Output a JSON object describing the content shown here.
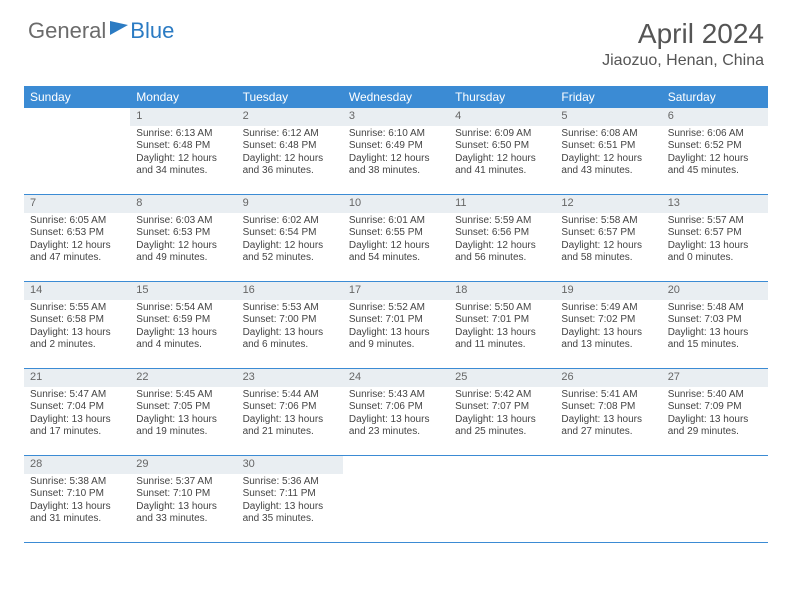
{
  "logo": {
    "part1": "General",
    "part2": "Blue"
  },
  "title": "April 2024",
  "location": "Jiaozuo, Henan, China",
  "headers": [
    "Sunday",
    "Monday",
    "Tuesday",
    "Wednesday",
    "Thursday",
    "Friday",
    "Saturday"
  ],
  "header_bg": "#3b8bd4",
  "header_fg": "#ffffff",
  "daynum_bg": "#e9eef2",
  "border_color": "#3b8bd4",
  "weeks": [
    [
      {
        "n": "",
        "sr": "",
        "ss": "",
        "dl1": "",
        "dl2": ""
      },
      {
        "n": "1",
        "sr": "Sunrise: 6:13 AM",
        "ss": "Sunset: 6:48 PM",
        "dl1": "Daylight: 12 hours",
        "dl2": "and 34 minutes."
      },
      {
        "n": "2",
        "sr": "Sunrise: 6:12 AM",
        "ss": "Sunset: 6:48 PM",
        "dl1": "Daylight: 12 hours",
        "dl2": "and 36 minutes."
      },
      {
        "n": "3",
        "sr": "Sunrise: 6:10 AM",
        "ss": "Sunset: 6:49 PM",
        "dl1": "Daylight: 12 hours",
        "dl2": "and 38 minutes."
      },
      {
        "n": "4",
        "sr": "Sunrise: 6:09 AM",
        "ss": "Sunset: 6:50 PM",
        "dl1": "Daylight: 12 hours",
        "dl2": "and 41 minutes."
      },
      {
        "n": "5",
        "sr": "Sunrise: 6:08 AM",
        "ss": "Sunset: 6:51 PM",
        "dl1": "Daylight: 12 hours",
        "dl2": "and 43 minutes."
      },
      {
        "n": "6",
        "sr": "Sunrise: 6:06 AM",
        "ss": "Sunset: 6:52 PM",
        "dl1": "Daylight: 12 hours",
        "dl2": "and 45 minutes."
      }
    ],
    [
      {
        "n": "7",
        "sr": "Sunrise: 6:05 AM",
        "ss": "Sunset: 6:53 PM",
        "dl1": "Daylight: 12 hours",
        "dl2": "and 47 minutes."
      },
      {
        "n": "8",
        "sr": "Sunrise: 6:03 AM",
        "ss": "Sunset: 6:53 PM",
        "dl1": "Daylight: 12 hours",
        "dl2": "and 49 minutes."
      },
      {
        "n": "9",
        "sr": "Sunrise: 6:02 AM",
        "ss": "Sunset: 6:54 PM",
        "dl1": "Daylight: 12 hours",
        "dl2": "and 52 minutes."
      },
      {
        "n": "10",
        "sr": "Sunrise: 6:01 AM",
        "ss": "Sunset: 6:55 PM",
        "dl1": "Daylight: 12 hours",
        "dl2": "and 54 minutes."
      },
      {
        "n": "11",
        "sr": "Sunrise: 5:59 AM",
        "ss": "Sunset: 6:56 PM",
        "dl1": "Daylight: 12 hours",
        "dl2": "and 56 minutes."
      },
      {
        "n": "12",
        "sr": "Sunrise: 5:58 AM",
        "ss": "Sunset: 6:57 PM",
        "dl1": "Daylight: 12 hours",
        "dl2": "and 58 minutes."
      },
      {
        "n": "13",
        "sr": "Sunrise: 5:57 AM",
        "ss": "Sunset: 6:57 PM",
        "dl1": "Daylight: 13 hours",
        "dl2": "and 0 minutes."
      }
    ],
    [
      {
        "n": "14",
        "sr": "Sunrise: 5:55 AM",
        "ss": "Sunset: 6:58 PM",
        "dl1": "Daylight: 13 hours",
        "dl2": "and 2 minutes."
      },
      {
        "n": "15",
        "sr": "Sunrise: 5:54 AM",
        "ss": "Sunset: 6:59 PM",
        "dl1": "Daylight: 13 hours",
        "dl2": "and 4 minutes."
      },
      {
        "n": "16",
        "sr": "Sunrise: 5:53 AM",
        "ss": "Sunset: 7:00 PM",
        "dl1": "Daylight: 13 hours",
        "dl2": "and 6 minutes."
      },
      {
        "n": "17",
        "sr": "Sunrise: 5:52 AM",
        "ss": "Sunset: 7:01 PM",
        "dl1": "Daylight: 13 hours",
        "dl2": "and 9 minutes."
      },
      {
        "n": "18",
        "sr": "Sunrise: 5:50 AM",
        "ss": "Sunset: 7:01 PM",
        "dl1": "Daylight: 13 hours",
        "dl2": "and 11 minutes."
      },
      {
        "n": "19",
        "sr": "Sunrise: 5:49 AM",
        "ss": "Sunset: 7:02 PM",
        "dl1": "Daylight: 13 hours",
        "dl2": "and 13 minutes."
      },
      {
        "n": "20",
        "sr": "Sunrise: 5:48 AM",
        "ss": "Sunset: 7:03 PM",
        "dl1": "Daylight: 13 hours",
        "dl2": "and 15 minutes."
      }
    ],
    [
      {
        "n": "21",
        "sr": "Sunrise: 5:47 AM",
        "ss": "Sunset: 7:04 PM",
        "dl1": "Daylight: 13 hours",
        "dl2": "and 17 minutes."
      },
      {
        "n": "22",
        "sr": "Sunrise: 5:45 AM",
        "ss": "Sunset: 7:05 PM",
        "dl1": "Daylight: 13 hours",
        "dl2": "and 19 minutes."
      },
      {
        "n": "23",
        "sr": "Sunrise: 5:44 AM",
        "ss": "Sunset: 7:06 PM",
        "dl1": "Daylight: 13 hours",
        "dl2": "and 21 minutes."
      },
      {
        "n": "24",
        "sr": "Sunrise: 5:43 AM",
        "ss": "Sunset: 7:06 PM",
        "dl1": "Daylight: 13 hours",
        "dl2": "and 23 minutes."
      },
      {
        "n": "25",
        "sr": "Sunrise: 5:42 AM",
        "ss": "Sunset: 7:07 PM",
        "dl1": "Daylight: 13 hours",
        "dl2": "and 25 minutes."
      },
      {
        "n": "26",
        "sr": "Sunrise: 5:41 AM",
        "ss": "Sunset: 7:08 PM",
        "dl1": "Daylight: 13 hours",
        "dl2": "and 27 minutes."
      },
      {
        "n": "27",
        "sr": "Sunrise: 5:40 AM",
        "ss": "Sunset: 7:09 PM",
        "dl1": "Daylight: 13 hours",
        "dl2": "and 29 minutes."
      }
    ],
    [
      {
        "n": "28",
        "sr": "Sunrise: 5:38 AM",
        "ss": "Sunset: 7:10 PM",
        "dl1": "Daylight: 13 hours",
        "dl2": "and 31 minutes."
      },
      {
        "n": "29",
        "sr": "Sunrise: 5:37 AM",
        "ss": "Sunset: 7:10 PM",
        "dl1": "Daylight: 13 hours",
        "dl2": "and 33 minutes."
      },
      {
        "n": "30",
        "sr": "Sunrise: 5:36 AM",
        "ss": "Sunset: 7:11 PM",
        "dl1": "Daylight: 13 hours",
        "dl2": "and 35 minutes."
      },
      {
        "n": "",
        "sr": "",
        "ss": "",
        "dl1": "",
        "dl2": ""
      },
      {
        "n": "",
        "sr": "",
        "ss": "",
        "dl1": "",
        "dl2": ""
      },
      {
        "n": "",
        "sr": "",
        "ss": "",
        "dl1": "",
        "dl2": ""
      },
      {
        "n": "",
        "sr": "",
        "ss": "",
        "dl1": "",
        "dl2": ""
      }
    ]
  ]
}
